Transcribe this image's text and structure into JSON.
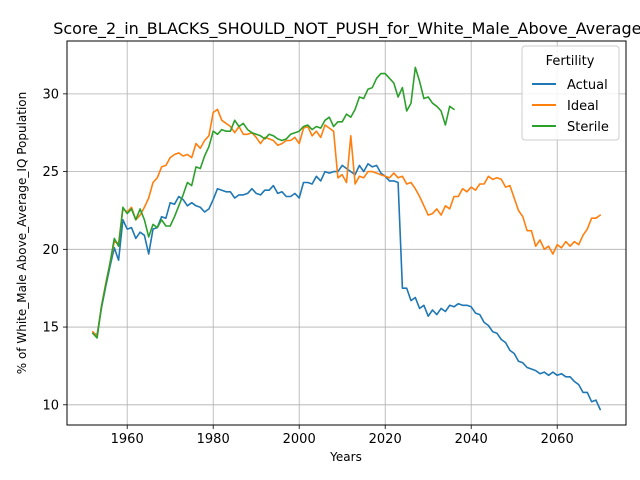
{
  "chart_data": {
    "type": "line",
    "title": "Score_2_in_BLACKS_SHOULD_NOT_PUSH_for_White_Male_Above_Average_IQ",
    "xlabel": "Years",
    "ylabel": "% of White_Male Above_Average_IQ Population",
    "xlim": [
      1946,
      2076
    ],
    "ylim": [
      8.7,
      33.4
    ],
    "xticks": [
      1960,
      1980,
      2000,
      2020,
      2040,
      2060
    ],
    "yticks": [
      10,
      15,
      20,
      25,
      30
    ],
    "grid": true,
    "legend": {
      "title": "Fertility",
      "placement": "top-right"
    },
    "series": [
      {
        "name": "Actual",
        "color": "#1f77b4",
        "x": [
          1952,
          1953,
          1954,
          1955,
          1956,
          1957,
          1958,
          1959,
          1960,
          1961,
          1962,
          1963,
          1964,
          1965,
          1966,
          1967,
          1968,
          1969,
          1970,
          1971,
          1972,
          1973,
          1974,
          1975,
          1976,
          1977,
          1978,
          1979,
          1980,
          1981,
          1982,
          1983,
          1984,
          1985,
          1986,
          1987,
          1988,
          1989,
          1990,
          1991,
          1992,
          1993,
          1994,
          1995,
          1996,
          1997,
          1998,
          1999,
          2000,
          2001,
          2002,
          2003,
          2004,
          2005,
          2006,
          2007,
          2008,
          2009,
          2010,
          2011,
          2012,
          2013,
          2014,
          2015,
          2016,
          2017,
          2018,
          2019,
          2020,
          2021,
          2022,
          2023,
          2024,
          2025,
          2026,
          2027,
          2028,
          2029,
          2030,
          2031,
          2032,
          2033,
          2034,
          2035,
          2036,
          2037,
          2038,
          2039,
          2040,
          2041,
          2042,
          2043,
          2044,
          2045,
          2046,
          2047,
          2048,
          2049,
          2050,
          2051,
          2052,
          2053,
          2054,
          2055,
          2056,
          2057,
          2058,
          2059,
          2060,
          2061,
          2062,
          2063,
          2064,
          2065,
          2066,
          2067,
          2068,
          2069,
          2070
        ],
        "y": [
          14.6,
          14.5,
          16.2,
          17.6,
          18.9,
          20.1,
          19.3,
          21.9,
          21.3,
          21.4,
          20.7,
          21.1,
          20.9,
          19.7,
          21.3,
          21.4,
          22.1,
          22.0,
          23.0,
          22.9,
          23.4,
          23.2,
          22.8,
          23.0,
          22.8,
          22.7,
          22.4,
          22.6,
          23.2,
          23.9,
          23.8,
          23.7,
          23.7,
          23.3,
          23.5,
          23.5,
          23.6,
          23.9,
          23.6,
          23.5,
          23.8,
          23.8,
          24.1,
          23.6,
          23.7,
          23.4,
          23.4,
          23.6,
          23.3,
          24.3,
          24.3,
          24.2,
          24.7,
          24.4,
          25.0,
          24.9,
          25.0,
          25.0,
          25.4,
          25.2,
          25.0,
          24.8,
          25.4,
          25.0,
          25.5,
          25.3,
          25.4,
          24.9,
          24.7,
          24.4,
          24.4,
          24.3,
          17.5,
          17.5,
          16.7,
          16.9,
          16.2,
          16.4,
          15.7,
          16.1,
          15.8,
          16.2,
          16.0,
          16.4,
          16.3,
          16.5,
          16.4,
          16.4,
          16.3,
          15.9,
          15.8,
          15.3,
          15.1,
          14.7,
          14.6,
          14.2,
          14.0,
          13.5,
          13.3,
          12.8,
          12.7,
          12.4,
          12.3,
          12.2,
          12.0,
          12.1,
          11.9,
          12.1,
          11.9,
          12.0,
          11.8,
          11.8,
          11.5,
          11.3,
          10.8,
          10.8,
          10.2,
          10.3,
          9.7
        ]
      },
      {
        "name": "Ideal",
        "color": "#ff7f0e",
        "x": [
          1952,
          1953,
          1954,
          1955,
          1956,
          1957,
          1958,
          1959,
          1960,
          1961,
          1962,
          1963,
          1964,
          1965,
          1966,
          1967,
          1968,
          1969,
          1970,
          1971,
          1972,
          1973,
          1974,
          1975,
          1976,
          1977,
          1978,
          1979,
          1980,
          1981,
          1982,
          1983,
          1984,
          1985,
          1986,
          1987,
          1988,
          1989,
          1990,
          1991,
          1992,
          1993,
          1994,
          1995,
          1996,
          1997,
          1998,
          1999,
          2000,
          2001,
          2002,
          2003,
          2004,
          2005,
          2006,
          2007,
          2008,
          2009,
          2010,
          2011,
          2012,
          2013,
          2014,
          2015,
          2016,
          2017,
          2018,
          2019,
          2020,
          2021,
          2022,
          2023,
          2024,
          2025,
          2026,
          2027,
          2028,
          2029,
          2030,
          2031,
          2032,
          2033,
          2034,
          2035,
          2036,
          2037,
          2038,
          2039,
          2040,
          2041,
          2042,
          2043,
          2044,
          2045,
          2046,
          2047,
          2048,
          2049,
          2050,
          2051,
          2052,
          2053,
          2054,
          2055,
          2056,
          2057,
          2058,
          2059,
          2060,
          2061,
          2062,
          2063,
          2064,
          2065,
          2066,
          2067,
          2068,
          2069,
          2070
        ],
        "y": [
          14.7,
          14.4,
          16.3,
          17.8,
          19.1,
          20.5,
          20.4,
          22.6,
          22.4,
          22.7,
          21.9,
          22.2,
          22.7,
          23.3,
          24.3,
          24.6,
          25.3,
          25.4,
          25.9,
          26.1,
          26.2,
          26.0,
          26.1,
          25.9,
          26.8,
          26.5,
          27.0,
          27.3,
          28.8,
          29.0,
          28.3,
          28.1,
          27.9,
          27.5,
          27.9,
          27.4,
          27.4,
          27.5,
          27.2,
          26.8,
          27.2,
          27.1,
          27.0,
          26.7,
          26.8,
          27.0,
          27.0,
          27.2,
          26.8,
          27.8,
          27.9,
          27.3,
          27.6,
          27.2,
          28.0,
          27.8,
          27.6,
          24.6,
          24.8,
          24.3,
          27.3,
          24.2,
          24.7,
          24.6,
          25.0,
          25.0,
          24.9,
          24.8,
          24.7,
          24.6,
          24.9,
          24.6,
          24.7,
          24.2,
          24.3,
          23.9,
          23.4,
          22.8,
          22.2,
          22.3,
          22.6,
          22.2,
          22.8,
          22.6,
          23.4,
          23.4,
          23.9,
          23.7,
          24.0,
          23.8,
          24.2,
          24.2,
          24.7,
          24.5,
          24.6,
          24.5,
          24.0,
          24.1,
          23.3,
          22.5,
          22.1,
          21.2,
          21.2,
          20.2,
          20.6,
          20.0,
          20.2,
          19.7,
          20.3,
          20.1,
          20.5,
          20.2,
          20.5,
          20.3,
          20.9,
          21.3,
          22.0,
          22.0,
          22.2
        ]
      },
      {
        "name": "Sterile",
        "color": "#2ca02c",
        "x": [
          1952,
          1953,
          1954,
          1955,
          1956,
          1957,
          1958,
          1959,
          1960,
          1961,
          1962,
          1963,
          1964,
          1965,
          1966,
          1967,
          1968,
          1969,
          1970,
          1971,
          1972,
          1973,
          1974,
          1975,
          1976,
          1977,
          1978,
          1979,
          1980,
          1981,
          1982,
          1983,
          1984,
          1985,
          1986,
          1987,
          1988,
          1989,
          1990,
          1991,
          1992,
          1993,
          1994,
          1995,
          1996,
          1997,
          1998,
          1999,
          2000,
          2001,
          2002,
          2003,
          2004,
          2005,
          2006,
          2007,
          2008,
          2009,
          2010,
          2011,
          2012,
          2013,
          2014,
          2015,
          2016,
          2017,
          2018,
          2019,
          2020,
          2021,
          2022,
          2023,
          2024,
          2025,
          2026,
          2027,
          2028,
          2029,
          2030,
          2031,
          2032,
          2033,
          2034,
          2035,
          2036
        ],
        "y": [
          14.6,
          14.3,
          16.3,
          17.7,
          19.1,
          20.7,
          20.2,
          22.7,
          22.3,
          22.6,
          21.9,
          22.6,
          21.9,
          20.8,
          21.6,
          21.4,
          21.9,
          21.5,
          21.5,
          22.1,
          22.8,
          23.5,
          24.3,
          24.1,
          25.3,
          25.2,
          26.0,
          26.6,
          27.6,
          27.4,
          27.7,
          27.6,
          27.6,
          28.3,
          27.9,
          28.1,
          27.7,
          27.5,
          27.4,
          27.3,
          27.1,
          27.4,
          27.3,
          27.1,
          27.0,
          27.1,
          27.4,
          27.5,
          27.6,
          27.9,
          28.0,
          27.7,
          27.9,
          27.8,
          28.3,
          28.5,
          27.9,
          28.2,
          28.2,
          28.7,
          28.5,
          29.0,
          29.8,
          29.7,
          30.3,
          30.4,
          31.0,
          31.3,
          31.3,
          31.0,
          30.7,
          29.8,
          30.4,
          28.9,
          29.4,
          31.7,
          30.8,
          29.7,
          29.8,
          29.4,
          29.2,
          28.9,
          28.0,
          29.2,
          29.0
        ]
      }
    ]
  }
}
